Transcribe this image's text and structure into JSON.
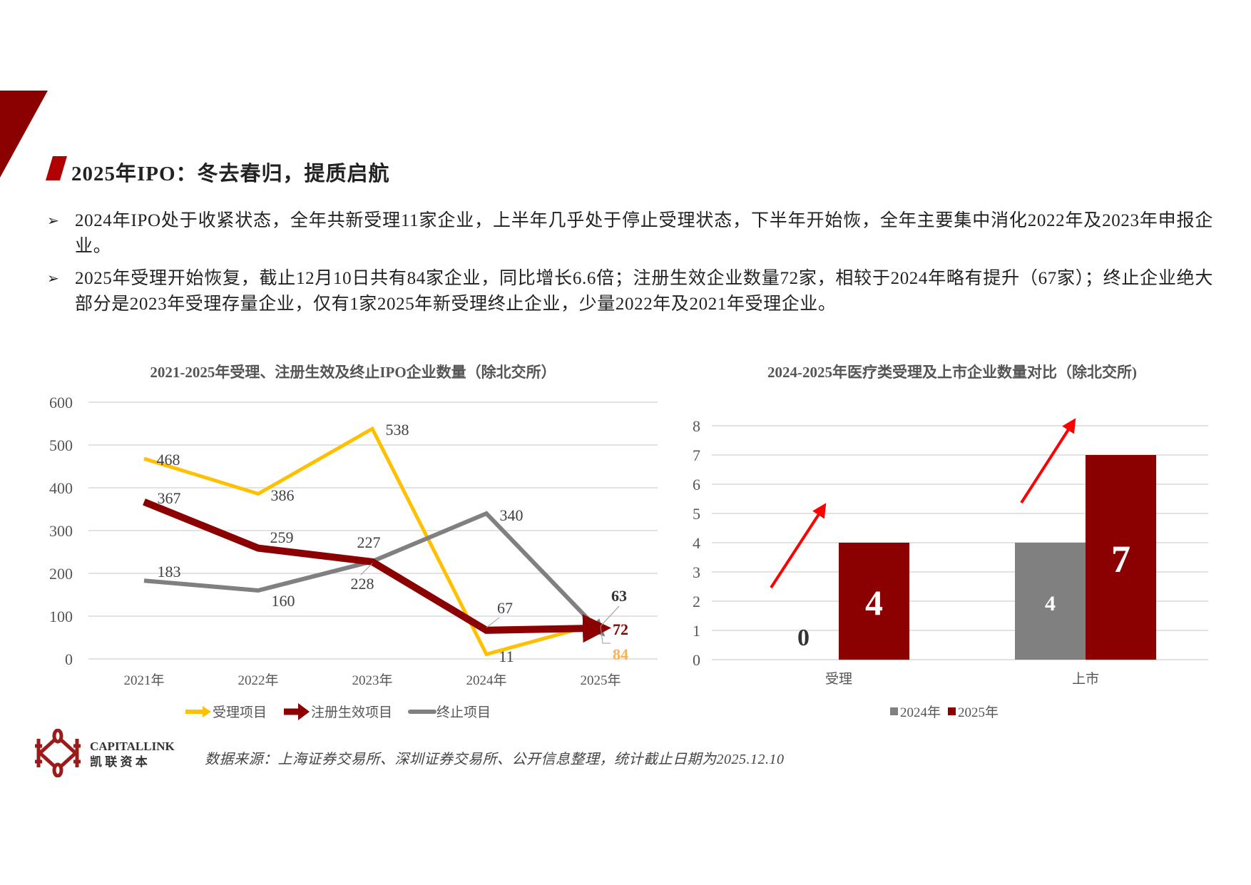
{
  "header": {
    "title": "2025年IPO：冬去春归，提质启航"
  },
  "bullets": [
    "2024年IPO处于收紧状态，全年共新受理11家企业，上半年几乎处于停止受理状态，下半年开始恢，全年主要集中消化2022年及2023年申报企业。",
    "2025年受理开始恢复，截止12月10日共有84家企业，同比增长6.6倍；注册生效企业数量72家，相较于2024年略有提升（67家）；终止企业绝大部分是2023年受理存量企业，仅有1家2025年新受理终止企业，少量2022年及2021年受理企业。"
  ],
  "colors": {
    "brand": "#8b0000",
    "yellow": "#ffc000",
    "gray": "#808080",
    "orange_label": "#f4b35a",
    "red_arrow": "#ff0000"
  },
  "chart_data": [
    {
      "type": "line",
      "title": "2021-2025年受理、注册生效及终止IPO企业数量（除北交所）",
      "categories": [
        "2021年",
        "2022年",
        "2023年",
        "2024年",
        "2025年"
      ],
      "ylim": [
        0,
        600
      ],
      "yticks": [
        "0",
        "100",
        "200",
        "300",
        "400",
        "500",
        "600"
      ],
      "grid": true,
      "legend_position": "bottom",
      "series": [
        {
          "name": "受理项目",
          "values": [
            468,
            386,
            538,
            11,
            84
          ],
          "color": "#ffc000"
        },
        {
          "name": "注册生效项目",
          "values": [
            367,
            259,
            227,
            67,
            72
          ],
          "color": "#8b0000"
        },
        {
          "name": "终止项目",
          "values": [
            183,
            160,
            228,
            340,
            63
          ],
          "color": "#808080"
        }
      ]
    },
    {
      "type": "bar",
      "title": "2024-2025年医疗类受理及上市企业数量对比（除北交所)",
      "categories": [
        "受理",
        "上市"
      ],
      "ylim": [
        0,
        8
      ],
      "yticks": [
        "0",
        "1",
        "2",
        "3",
        "4",
        "5",
        "6",
        "7",
        "8"
      ],
      "grid": true,
      "legend_position": "bottom",
      "series": [
        {
          "name": "2024年",
          "values": [
            0,
            4
          ],
          "color": "#808080"
        },
        {
          "name": "2025年",
          "values": [
            4,
            7
          ],
          "color": "#8b0000"
        }
      ]
    }
  ],
  "footer": {
    "logo_en": "CAPITALLINK",
    "logo_cn": "凯 联 资 本",
    "source": "数据来源：上海证券交易所、深圳证券交易所、公开信息整理，统计截止日期为2025.12.10"
  }
}
